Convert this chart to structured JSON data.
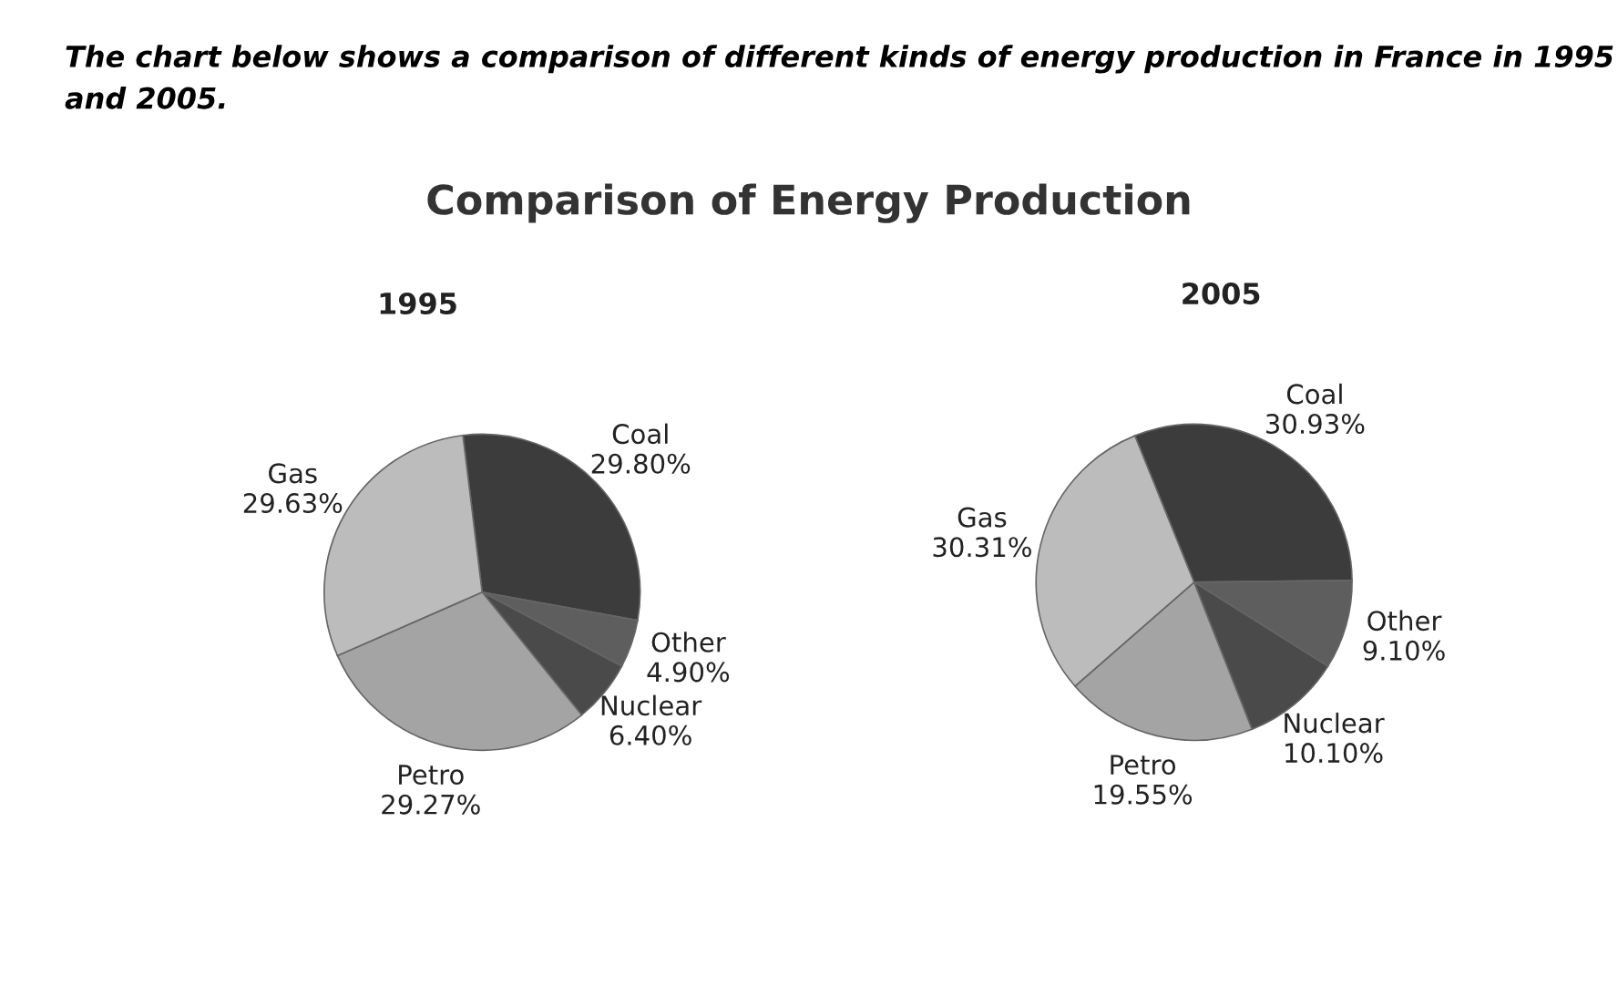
{
  "chart_data": [
    {
      "type": "pie",
      "title": "Comparison of Energy Production",
      "subtitle": "1995",
      "annotations": [
        "The chart below shows a comparison of different kinds of energy production in France in 1995 and 2005."
      ],
      "categories": [
        "Coal",
        "Other",
        "Nuclear",
        "Petro",
        "Gas"
      ],
      "values": [
        29.8,
        4.9,
        6.4,
        29.27,
        29.63
      ],
      "value_labels": [
        "29.80%",
        "4.90%",
        "6.40%",
        "29.27%",
        "29.63%"
      ],
      "colors": [
        "#3c3c3c",
        "#5e5e5e",
        "#4a4a4a",
        "#a4a4a4",
        "#bcbcbc"
      ]
    },
    {
      "type": "pie",
      "subtitle": "2005",
      "categories": [
        "Coal",
        "Other",
        "Nuclear",
        "Petro",
        "Gas"
      ],
      "values": [
        30.93,
        9.1,
        10.1,
        19.55,
        30.31
      ],
      "value_labels": [
        "30.93%",
        "9.10%",
        "10.10%",
        "19.55%",
        "30.31%"
      ],
      "colors": [
        "#3c3c3c",
        "#5e5e5e",
        "#4a4a4a",
        "#a4a4a4",
        "#bcbcbc"
      ]
    }
  ]
}
